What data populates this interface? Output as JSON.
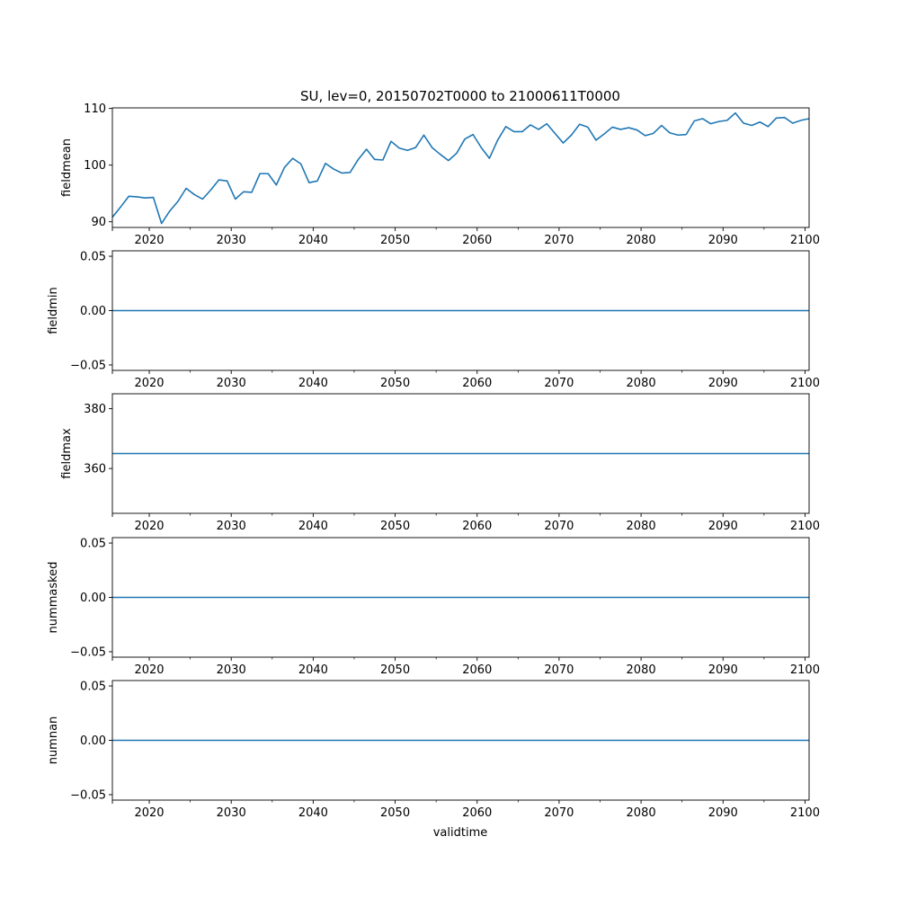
{
  "title": "SU, lev=0, 20150702T0000 to 21000611T0000",
  "xlabel": "validtime",
  "x_ticks": [
    "2020",
    "2030",
    "2040",
    "2050",
    "2060",
    "2070",
    "2080",
    "2090",
    "2100"
  ],
  "x_tick_values": [
    2020,
    2030,
    2040,
    2050,
    2060,
    2070,
    2080,
    2090,
    2100
  ],
  "line_color": "#1f77b4",
  "chart_data": [
    {
      "type": "line",
      "ylabel": "fieldmean",
      "xlim": [
        2015.5,
        2100.5
      ],
      "ylim": [
        89,
        110.1
      ],
      "y_ticks": [
        "90",
        "100",
        "110"
      ],
      "y_tick_values": [
        90,
        100,
        110
      ],
      "x": [
        2015.5,
        2016.5,
        2017.5,
        2018.5,
        2019.5,
        2020.5,
        2021.5,
        2022.5,
        2023.5,
        2024.5,
        2025.5,
        2026.5,
        2027.5,
        2028.5,
        2029.5,
        2030.5,
        2031.5,
        2032.5,
        2033.5,
        2034.5,
        2035.5,
        2036.5,
        2037.5,
        2038.5,
        2039.5,
        2040.5,
        2041.5,
        2042.5,
        2043.5,
        2044.5,
        2045.5,
        2046.5,
        2047.5,
        2048.5,
        2049.5,
        2050.5,
        2051.5,
        2052.5,
        2053.5,
        2054.5,
        2055.5,
        2056.5,
        2057.5,
        2058.5,
        2059.5,
        2060.5,
        2061.5,
        2062.5,
        2063.5,
        2064.5,
        2065.5,
        2066.5,
        2067.5,
        2068.5,
        2069.5,
        2070.5,
        2071.5,
        2072.5,
        2073.5,
        2074.5,
        2075.5,
        2076.5,
        2077.5,
        2078.5,
        2079.5,
        2080.5,
        2081.5,
        2082.5,
        2083.5,
        2084.5,
        2085.5,
        2086.5,
        2087.5,
        2088.5,
        2089.5,
        2090.5,
        2091.5,
        2092.5,
        2093.5,
        2094.5,
        2095.5,
        2096.5,
        2097.5,
        2098.5,
        2099.5,
        2100.5
      ],
      "values": [
        90.8,
        92.6,
        94.5,
        94.4,
        94.2,
        94.3,
        89.7,
        91.9,
        93.6,
        95.9,
        94.8,
        94.0,
        95.6,
        97.4,
        97.2,
        94.0,
        95.3,
        95.2,
        98.5,
        98.5,
        96.5,
        99.6,
        101.2,
        100.2,
        96.9,
        97.2,
        100.3,
        99.3,
        98.6,
        98.7,
        101.0,
        102.8,
        101.0,
        100.9,
        104.2,
        103.0,
        102.6,
        103.1,
        105.3,
        103.1,
        101.9,
        100.8,
        102.1,
        104.6,
        105.4,
        103.1,
        101.2,
        104.4,
        106.8,
        105.9,
        105.9,
        107.1,
        106.3,
        107.3,
        105.6,
        103.9,
        105.3,
        107.2,
        106.7,
        104.4,
        105.5,
        106.7,
        106.3,
        106.6,
        106.2,
        105.2,
        105.6,
        107.0,
        105.7,
        105.3,
        105.4,
        107.8,
        108.2,
        107.3,
        107.7,
        107.9,
        109.2,
        107.4,
        107.0,
        107.6,
        106.8,
        108.3,
        108.4,
        107.4,
        107.9,
        108.2
      ]
    },
    {
      "type": "line",
      "ylabel": "fieldmin",
      "xlim": [
        2015.5,
        2100.5
      ],
      "ylim": [
        -0.055,
        0.055
      ],
      "y_ticks": [
        "−0.05",
        "0.00",
        "0.05"
      ],
      "y_tick_values": [
        -0.05,
        0,
        0.05
      ],
      "x": [
        2015.5,
        2100.5
      ],
      "values": [
        0,
        0
      ]
    },
    {
      "type": "line",
      "ylabel": "fieldmax",
      "xlim": [
        2015.5,
        2100.5
      ],
      "ylim": [
        345,
        385
      ],
      "y_ticks": [
        "360",
        "380"
      ],
      "y_tick_values": [
        360,
        380
      ],
      "x": [
        2015.5,
        2100.5
      ],
      "values": [
        365,
        365
      ]
    },
    {
      "type": "line",
      "ylabel": "nummasked",
      "xlim": [
        2015.5,
        2100.5
      ],
      "ylim": [
        -0.055,
        0.055
      ],
      "y_ticks": [
        "−0.05",
        "0.00",
        "0.05"
      ],
      "y_tick_values": [
        -0.05,
        0,
        0.05
      ],
      "x": [
        2015.5,
        2100.5
      ],
      "values": [
        0,
        0
      ]
    },
    {
      "type": "line",
      "ylabel": "numnan",
      "xlim": [
        2015.5,
        2100.5
      ],
      "ylim": [
        -0.055,
        0.055
      ],
      "y_ticks": [
        "−0.05",
        "0.00",
        "0.05"
      ],
      "y_tick_values": [
        -0.05,
        0,
        0.05
      ],
      "x": [
        2015.5,
        2100.5
      ],
      "values": [
        0,
        0
      ]
    }
  ]
}
